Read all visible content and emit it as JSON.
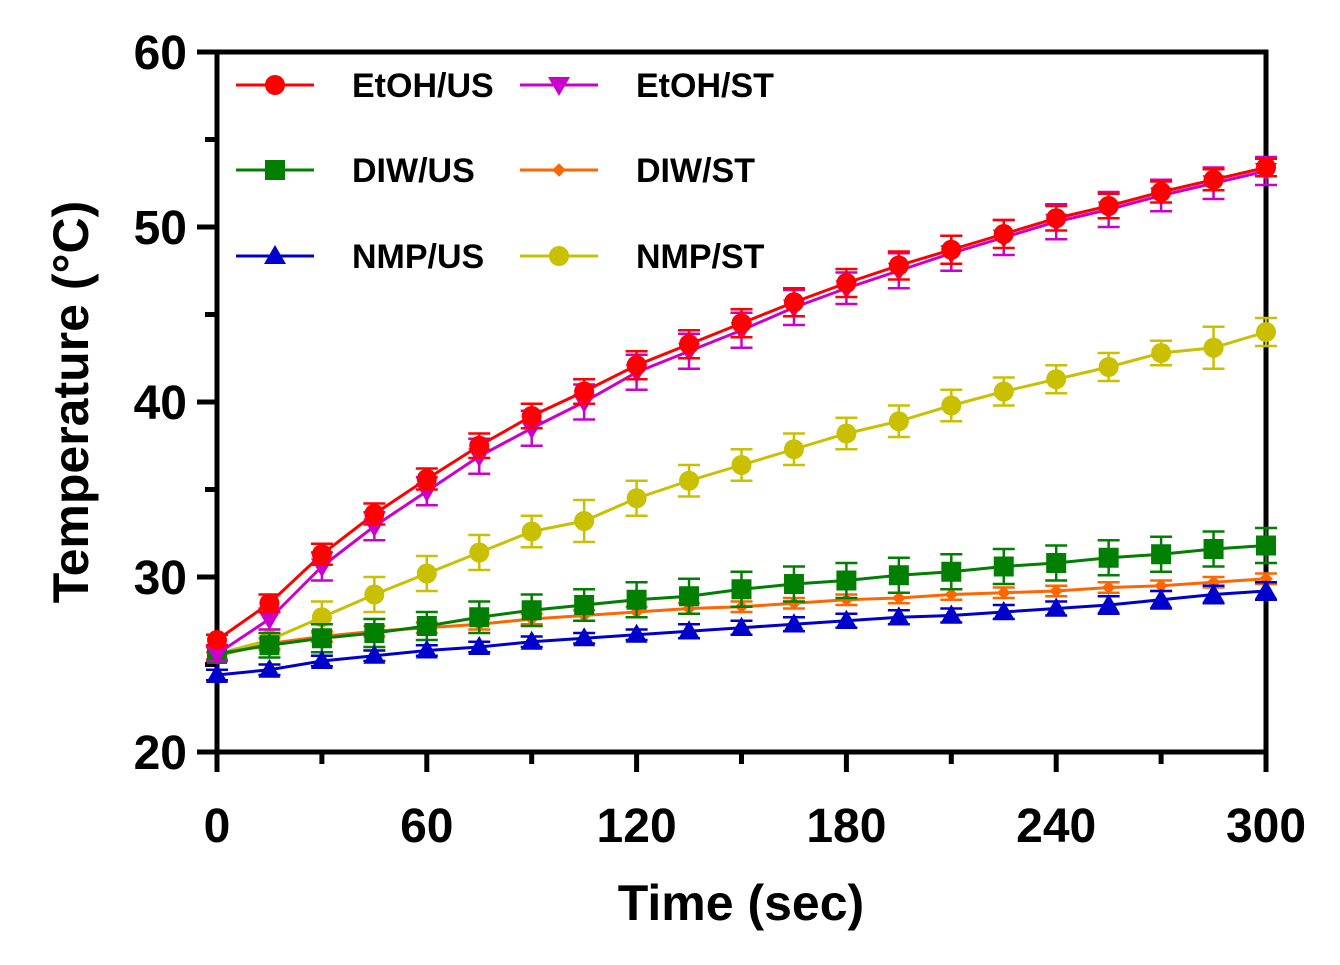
{
  "chart_data": {
    "type": "line",
    "title": "",
    "xlabel": "Time (sec)",
    "ylabel": "Temperature (°C)",
    "xlim": [
      0,
      300
    ],
    "ylim": [
      20,
      60
    ],
    "x_ticks": [
      0,
      60,
      120,
      180,
      240,
      300
    ],
    "y_ticks": [
      20,
      30,
      40,
      50,
      60
    ],
    "grid": false,
    "legend_position": "top-left",
    "x": [
      0,
      15,
      30,
      45,
      60,
      75,
      90,
      105,
      120,
      135,
      150,
      165,
      180,
      195,
      210,
      225,
      240,
      255,
      270,
      285,
      300
    ],
    "series": [
      {
        "name": "EtOH/US",
        "color": "#ff0000",
        "marker": "circle",
        "values": [
          26.4,
          28.5,
          31.3,
          33.6,
          35.6,
          37.5,
          39.2,
          40.6,
          42.1,
          43.3,
          44.5,
          45.7,
          46.8,
          47.8,
          48.7,
          49.6,
          50.5,
          51.2,
          52.0,
          52.7,
          53.4
        ],
        "errors": [
          0.3,
          0.5,
          0.6,
          0.6,
          0.6,
          0.7,
          0.7,
          0.7,
          0.8,
          0.8,
          0.8,
          0.8,
          0.8,
          0.8,
          0.8,
          0.8,
          0.7,
          0.7,
          0.6,
          0.6,
          0.5
        ]
      },
      {
        "name": "EtOH/ST",
        "color": "#cc00cc",
        "marker": "triangle-down",
        "values": [
          25.6,
          27.6,
          30.6,
          32.9,
          34.9,
          36.9,
          38.5,
          40.0,
          41.7,
          42.9,
          44.1,
          45.4,
          46.5,
          47.5,
          48.5,
          49.4,
          50.3,
          51.0,
          51.8,
          52.5,
          53.2
        ],
        "errors": [
          0.4,
          0.6,
          0.8,
          0.8,
          0.8,
          1.0,
          1.0,
          1.0,
          1.0,
          1.0,
          1.0,
          1.0,
          0.9,
          1.0,
          1.0,
          1.0,
          1.0,
          1.0,
          0.9,
          0.9,
          0.8
        ]
      },
      {
        "name": "DIW/US",
        "color": "#007f00",
        "marker": "square",
        "values": [
          25.6,
          26.1,
          26.5,
          26.8,
          27.2,
          27.7,
          28.1,
          28.4,
          28.7,
          28.9,
          29.3,
          29.6,
          29.8,
          30.1,
          30.3,
          30.6,
          30.8,
          31.1,
          31.3,
          31.6,
          31.8
        ],
        "errors": [
          0.4,
          0.7,
          0.8,
          0.8,
          0.8,
          0.9,
          0.9,
          0.9,
          1.0,
          1.0,
          1.0,
          1.0,
          1.0,
          1.0,
          1.0,
          1.0,
          1.0,
          1.0,
          1.0,
          1.0,
          1.0
        ]
      },
      {
        "name": "DIW/ST",
        "color": "#ff6600",
        "marker": "diamond",
        "values": [
          25.5,
          26.2,
          26.6,
          26.9,
          27.1,
          27.3,
          27.6,
          27.8,
          28.0,
          28.2,
          28.3,
          28.5,
          28.7,
          28.8,
          29.0,
          29.1,
          29.2,
          29.4,
          29.5,
          29.7,
          29.9
        ],
        "errors": [
          0.2,
          0.3,
          0.3,
          0.3,
          0.3,
          0.3,
          0.3,
          0.3,
          0.3,
          0.3,
          0.3,
          0.3,
          0.3,
          0.3,
          0.3,
          0.3,
          0.3,
          0.3,
          0.3,
          0.3,
          0.3
        ]
      },
      {
        "name": "NMP/US",
        "color": "#0000cc",
        "marker": "triangle-up",
        "values": [
          24.4,
          24.7,
          25.2,
          25.5,
          25.8,
          26.0,
          26.3,
          26.5,
          26.7,
          26.9,
          27.1,
          27.3,
          27.5,
          27.7,
          27.8,
          28.0,
          28.2,
          28.4,
          28.7,
          29.0,
          29.2
        ],
        "errors": [
          0.3,
          0.3,
          0.3,
          0.3,
          0.3,
          0.3,
          0.3,
          0.3,
          0.3,
          0.4,
          0.4,
          0.4,
          0.4,
          0.4,
          0.4,
          0.4,
          0.4,
          0.5,
          0.5,
          0.5,
          0.5
        ]
      },
      {
        "name": "NMP/ST",
        "color": "#c8c000",
        "marker": "circle",
        "values": [
          25.6,
          26.4,
          27.7,
          29.0,
          30.2,
          31.4,
          32.6,
          33.2,
          34.5,
          35.5,
          36.4,
          37.3,
          38.2,
          38.9,
          39.8,
          40.6,
          41.3,
          42.0,
          42.8,
          43.1,
          44.0
        ],
        "errors": [
          0.4,
          0.6,
          0.9,
          1.0,
          1.0,
          1.0,
          0.9,
          1.2,
          1.0,
          0.9,
          0.9,
          0.9,
          0.9,
          0.9,
          0.9,
          0.8,
          0.8,
          0.8,
          0.7,
          1.2,
          0.8
        ]
      }
    ]
  }
}
